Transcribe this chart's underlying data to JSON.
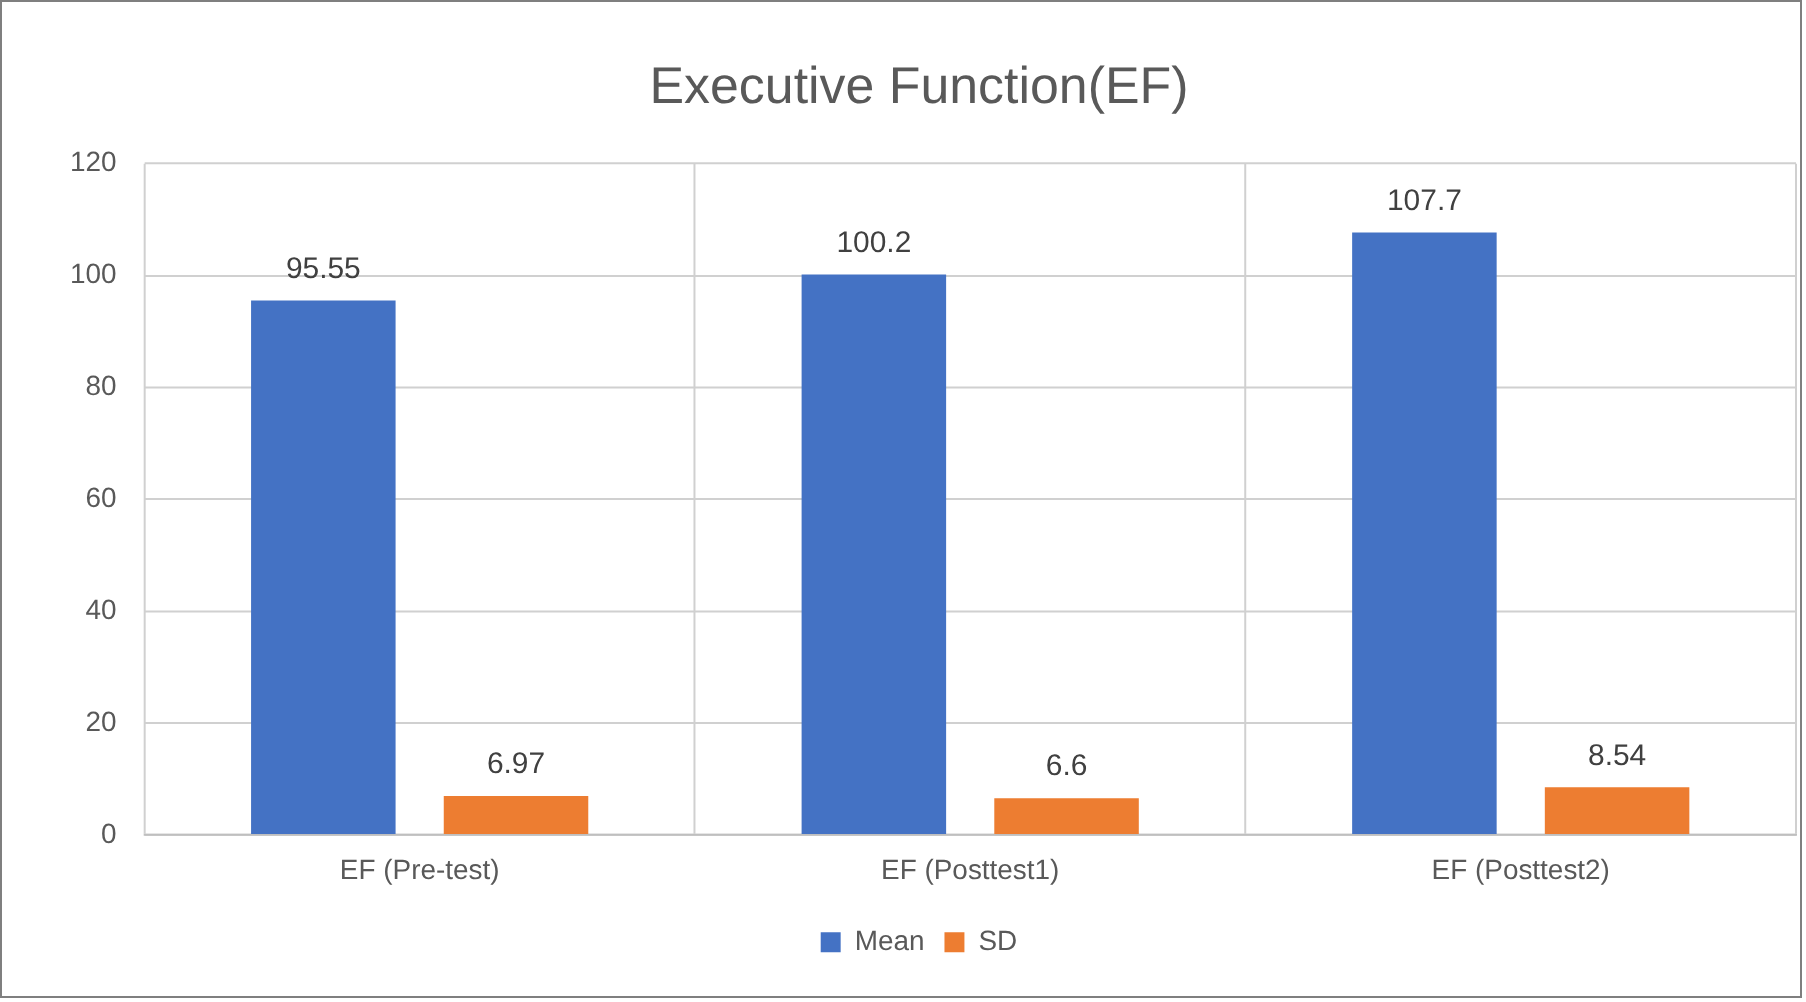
{
  "chart_data": {
    "type": "bar",
    "title": "Executive Function(EF)",
    "categories": [
      "EF (Pre-test)",
      "EF (Posttest1)",
      "EF (Posttest2)"
    ],
    "series": [
      {
        "name": "Mean",
        "color": "#4472c4",
        "values": [
          95.55,
          100.2,
          107.7
        ]
      },
      {
        "name": "SD",
        "color": "#ed7d31",
        "values": [
          6.97,
          6.6,
          8.54
        ]
      }
    ],
    "ylim": [
      0,
      120
    ],
    "yticks": [
      0,
      20,
      40,
      60,
      80,
      100,
      120
    ],
    "grid": true,
    "legend": "bottom",
    "data_labels": true
  }
}
